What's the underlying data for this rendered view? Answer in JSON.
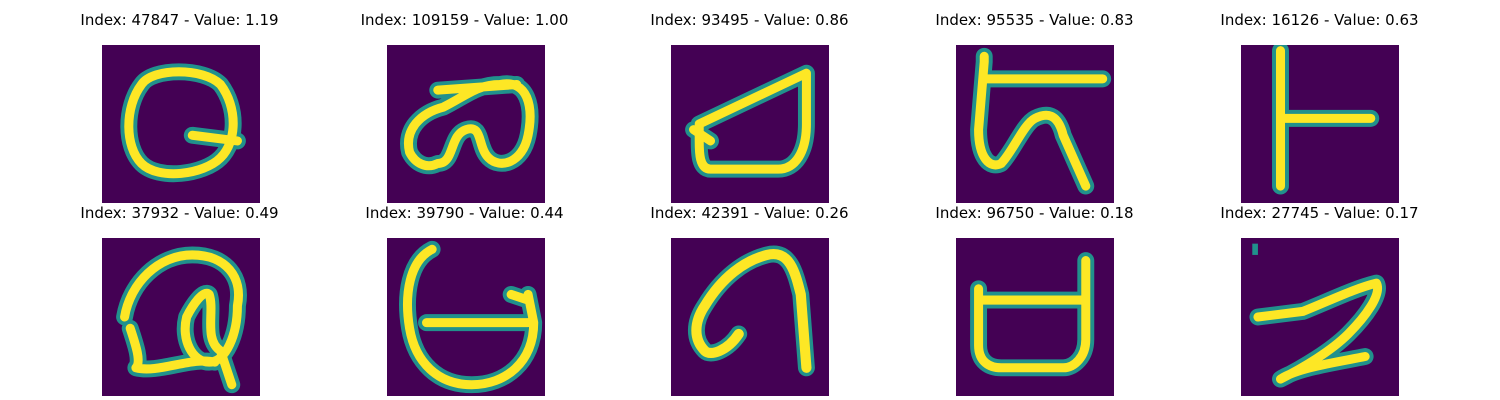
{
  "colors": {
    "background": "#440154",
    "stroke_outer": "#21918c",
    "stroke_inner": "#fde725"
  },
  "tiles": [
    {
      "title": "Index: 47847 - Value: 1.19",
      "index": 47847,
      "value": 1.19
    },
    {
      "title": "Index: 109159 - Value: 1.00",
      "index": 109159,
      "value": 1.0
    },
    {
      "title": "Index: 93495 - Value: 0.86",
      "index": 93495,
      "value": 0.86
    },
    {
      "title": "Index: 95535 - Value: 0.83",
      "index": 95535,
      "value": 0.83
    },
    {
      "title": "Index: 16126 - Value: 0.63",
      "index": 16126,
      "value": 0.63
    },
    {
      "title": "Index: 37932 - Value: 0.49",
      "index": 37932,
      "value": 0.49
    },
    {
      "title": "Index: 39790 - Value: 0.44",
      "index": 39790,
      "value": 0.44
    },
    {
      "title": "Index: 42391 - Value: 0.26",
      "index": 42391,
      "value": 0.26
    },
    {
      "title": "Index: 96750 - Value: 0.18",
      "index": 96750,
      "value": 0.18
    },
    {
      "title": "Index: 27745 - Value: 0.17",
      "index": 27745,
      "value": 0.17
    }
  ]
}
